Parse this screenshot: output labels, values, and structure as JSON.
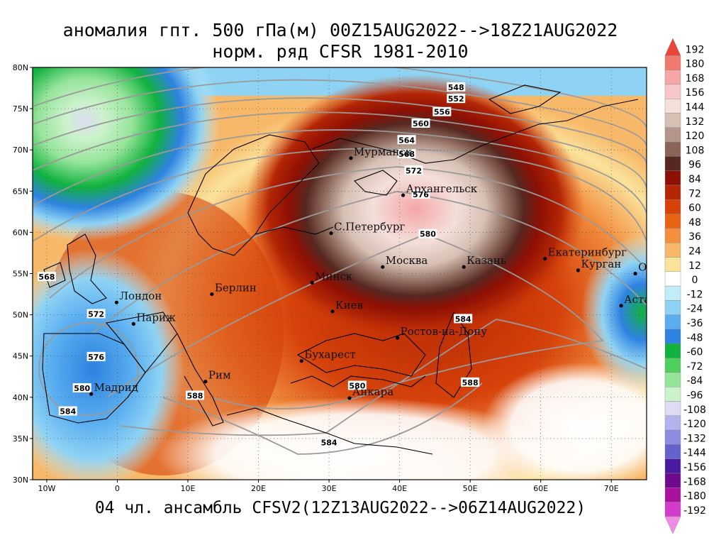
{
  "title_line1": "аномалия гпт. 500 гПа(м) 00Z15AUG2022-->18Z21AUG2022",
  "title_line2": "норм. ряд CFSR 1981-2010",
  "subtitle": "04 чл. ансамбль CFSV2(12Z13AUG2022-->06Z14AUG2022)",
  "lat_ticks": [
    "80N",
    "75N",
    "70N",
    "65N",
    "60N",
    "55N",
    "50N",
    "45N",
    "40N",
    "35N",
    "30N"
  ],
  "lon_ticks": [
    "10W",
    "0",
    "10E",
    "20E",
    "30E",
    "40E",
    "50E",
    "60E",
    "70E"
  ],
  "cities": [
    {
      "name": "Мурманск",
      "lon": 33.1,
      "lat": 69.0
    },
    {
      "name": "Архангельск",
      "lon": 40.5,
      "lat": 64.5
    },
    {
      "name": "С.Петербург",
      "lon": 30.3,
      "lat": 59.9
    },
    {
      "name": "Москва",
      "lon": 37.6,
      "lat": 55.8
    },
    {
      "name": "Казань",
      "lon": 49.1,
      "lat": 55.8
    },
    {
      "name": "Екатеринбург",
      "lon": 60.6,
      "lat": 56.8
    },
    {
      "name": "Курган",
      "lon": 65.3,
      "lat": 55.4
    },
    {
      "name": "Омск",
      "lon": 73.4,
      "lat": 55.0
    },
    {
      "name": "Астана",
      "lon": 71.4,
      "lat": 51.1
    },
    {
      "name": "Минск",
      "lon": 27.6,
      "lat": 53.9
    },
    {
      "name": "Берлин",
      "lon": 13.4,
      "lat": 52.5
    },
    {
      "name": "Киев",
      "lon": 30.5,
      "lat": 50.4
    },
    {
      "name": "Лондон",
      "lon": -0.1,
      "lat": 51.5
    },
    {
      "name": "Париж",
      "lon": 2.3,
      "lat": 48.9
    },
    {
      "name": "Ростов-на-Дону",
      "lon": 39.7,
      "lat": 47.2
    },
    {
      "name": "Бухарест",
      "lon": 26.1,
      "lat": 44.4
    },
    {
      "name": "Рим",
      "lon": 12.5,
      "lat": 41.9
    },
    {
      "name": "Мадрид",
      "lon": -3.7,
      "lat": 40.4
    },
    {
      "name": "Анкара",
      "lon": 32.9,
      "lat": 39.9
    }
  ],
  "contour_labels": [
    {
      "text": "548",
      "lon": 48.0,
      "lat": 77.6
    },
    {
      "text": "552",
      "lon": 48.0,
      "lat": 76.2
    },
    {
      "text": "556",
      "lon": 46.0,
      "lat": 74.6
    },
    {
      "text": "560",
      "lon": 43.0,
      "lat": 73.2
    },
    {
      "text": "564",
      "lon": 41.0,
      "lat": 71.2
    },
    {
      "text": "568",
      "lon": 41.0,
      "lat": 69.5
    },
    {
      "text": "572",
      "lon": 42.0,
      "lat": 67.5
    },
    {
      "text": "576",
      "lon": 43.0,
      "lat": 64.6
    },
    {
      "text": "580",
      "lon": 44.0,
      "lat": 59.8
    },
    {
      "text": "584",
      "lon": 49.0,
      "lat": 49.5
    },
    {
      "text": "588",
      "lon": 50.0,
      "lat": 41.8
    },
    {
      "text": "580",
      "lon": 34.0,
      "lat": 41.4
    },
    {
      "text": "584",
      "lon": 30.0,
      "lat": 34.5
    },
    {
      "text": "588",
      "lon": 11.0,
      "lat": 40.2
    },
    {
      "text": "576",
      "lon": -3.0,
      "lat": 44.9
    },
    {
      "text": "580",
      "lon": -5.0,
      "lat": 41.1
    },
    {
      "text": "584",
      "lon": -7.0,
      "lat": 38.3
    },
    {
      "text": "572",
      "lon": -3.0,
      "lat": 50.1
    },
    {
      "text": "568",
      "lon": -10.0,
      "lat": 54.6
    }
  ],
  "legend": {
    "labels": [
      "192",
      "180",
      "168",
      "156",
      "144",
      "132",
      "120",
      "108",
      "96",
      "84",
      "72",
      "60",
      "48",
      "36",
      "24",
      "12",
      "0",
      "-12",
      "-24",
      "-36",
      "-48",
      "-60",
      "-72",
      "-84",
      "-96",
      "-108",
      "-120",
      "-132",
      "-144",
      "-156",
      "-168",
      "-180",
      "-192"
    ],
    "colors": [
      "#e8463a",
      "#f07a6e",
      "#f4a6a8",
      "#f9c6c9",
      "#f4dfd9",
      "#d6bfb3",
      "#b3958a",
      "#8a6458",
      "#562821",
      "#8e0f04",
      "#b42605",
      "#d6420a",
      "#e86414",
      "#f29040",
      "#f7b969",
      "#fbe39c",
      "#ffffff",
      "#c3ecf9",
      "#8fd3f4",
      "#5aaef0",
      "#2e82e0",
      "#11b23f",
      "#4ed05e",
      "#96e49a",
      "#ccf2cc",
      "#dcdcf4",
      "#b4b4ec",
      "#8c8ce0",
      "#6462cc",
      "#4a1aa0",
      "#6e0a8c",
      "#a8129e",
      "#d23cc8",
      "#f08ce6"
    ]
  },
  "colors": {
    "ridge_core": "#f4a6a8",
    "ridge_outer": "#8e0f04",
    "trough": "#11b23f",
    "contour_line": "#9a9a9a",
    "coast_line": "#000000"
  }
}
